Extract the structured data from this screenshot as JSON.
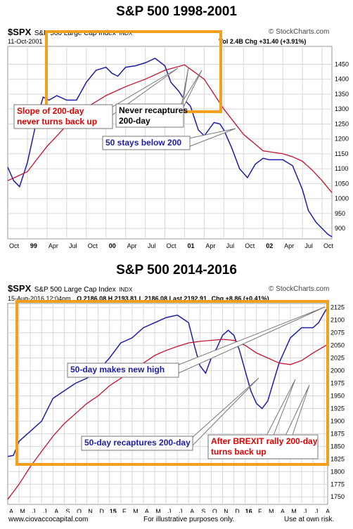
{
  "footer": {
    "left": "www.ciovaccocapital.com",
    "center": "For illustrative purposes only.",
    "right": "Use at own risk."
  },
  "colors": {
    "ma50": "#1c1ca8",
    "ma200": "#c8102e",
    "highlight": "#f5a01a",
    "annotation_red": "#e00000",
    "annotation_blue": "#1c1ca8"
  },
  "chart_data": [
    {
      "type": "line",
      "title": "S&P 500 1998-2001",
      "symbol": "$SPX",
      "description": "S&P 500 Large Cap Index",
      "exchange": "INDX",
      "date": "11-Oct-2001",
      "vol": "Vol 2.4B",
      "chg": "Chg +31.40 (+3.91%)",
      "watermark": "© StockCharts.com",
      "y_ticks": [
        900,
        950,
        1000,
        1050,
        1100,
        1150,
        1200,
        1250,
        1300,
        1350,
        1400,
        1450
      ],
      "ylim": [
        865,
        1510
      ],
      "x_ticks": [
        "Oct",
        "99",
        "Apr",
        "Jul",
        "Oct",
        "00",
        "Apr",
        "Jul",
        "Oct",
        "01",
        "Apr",
        "Jul",
        "Oct",
        "02",
        "Apr",
        "Jul",
        "Oct"
      ],
      "bold_ticks": [
        "99",
        "00",
        "01",
        "02"
      ],
      "series": [
        {
          "name": "50-day",
          "color": "#1c1ca8",
          "x": [
            0,
            0.3,
            0.6,
            1,
            1.5,
            1.8,
            2.1,
            2.5,
            3,
            3.5,
            4,
            4.5,
            5,
            5.3,
            5.6,
            6,
            6.5,
            7,
            7.5,
            8,
            8.3,
            8.7,
            9,
            9.3,
            9.7,
            10,
            10.5,
            10.8,
            11,
            11.4,
            11.8,
            12.2,
            12.6,
            13,
            13.3,
            13.6,
            14,
            14.5,
            15,
            15.3,
            15.7,
            16,
            16.3,
            16.5
          ],
          "y": [
            1105,
            1060,
            1040,
            1120,
            1270,
            1340,
            1330,
            1345,
            1330,
            1330,
            1390,
            1430,
            1440,
            1420,
            1410,
            1440,
            1445,
            1455,
            1470,
            1445,
            1390,
            1360,
            1330,
            1310,
            1230,
            1210,
            1255,
            1250,
            1230,
            1170,
            1100,
            1070,
            1115,
            1135,
            1130,
            1130,
            1130,
            1110,
            1030,
            960,
            920,
            900,
            880,
            872
          ]
        },
        {
          "name": "200-day",
          "color": "#c8102e",
          "x": [
            0,
            1,
            2,
            3,
            4,
            5,
            6,
            7,
            8,
            9,
            10,
            11,
            12,
            13,
            14,
            14.5,
            15,
            15.5,
            16,
            16.5
          ],
          "y": [
            1060,
            1090,
            1175,
            1245,
            1305,
            1345,
            1375,
            1400,
            1430,
            1448,
            1400,
            1300,
            1215,
            1160,
            1150,
            1140,
            1125,
            1095,
            1060,
            1020
          ]
        }
      ],
      "annotations": [
        {
          "text": "Slope of 200-day",
          "text2": "never turns back up",
          "color": "#e00000"
        },
        {
          "text": "Never recaptures",
          "text2": "200-day",
          "color": "#000000"
        },
        {
          "text": "50 stays below 200",
          "text2": "",
          "color": "#1c1ca8"
        }
      ]
    },
    {
      "type": "line",
      "title": "S&P 500 2014-2016",
      "symbol": "$SPX",
      "description": "S&P 500 Large Cap Index",
      "exchange": "INDX",
      "date": "15-Aug-2016 12:04pm",
      "ohlc": "O 2186.08  H 2193.81  L 2186.08  Last 2192.91",
      "chg": "Chg +8.86 (+0.41%)",
      "watermark": "© StockCharts.com",
      "y_ticks": [
        1750,
        1775,
        1800,
        1825,
        1850,
        1875,
        1900,
        1925,
        1950,
        1975,
        2000,
        2025,
        2050,
        2075,
        2100,
        2125
      ],
      "ylim": [
        1735,
        2133
      ],
      "x_ticks": [
        "A",
        "M",
        "J",
        "J",
        "A",
        "S",
        "O",
        "N",
        "D",
        "15",
        "F",
        "M",
        "A",
        "M",
        "J",
        "J",
        "A",
        "S",
        "O",
        "N",
        "D",
        "16",
        "F",
        "M",
        "A",
        "M",
        "J",
        "J",
        "A"
      ],
      "bold_ticks": [
        "15",
        "16"
      ],
      "series": [
        {
          "name": "50-day",
          "color": "#1c1ca8",
          "x": [
            0,
            0.5,
            1,
            2,
            3,
            4,
            5,
            6,
            7,
            8,
            9,
            10,
            11,
            12,
            13,
            14,
            15,
            16,
            16.5,
            17,
            17.5,
            18,
            18.5,
            19,
            19.5,
            20,
            20.5,
            21,
            21.5,
            22,
            22.5,
            23,
            24,
            25,
            26,
            27,
            27.5,
            28,
            28.3
          ],
          "y": [
            1830,
            1832,
            1860,
            1880,
            1900,
            1945,
            1960,
            1975,
            1985,
            2000,
            2025,
            2055,
            2065,
            2085,
            2095,
            2105,
            2110,
            2095,
            2050,
            2010,
            1995,
            2025,
            2045,
            2070,
            2080,
            2070,
            2040,
            2000,
            1960,
            1935,
            1925,
            1940,
            2015,
            2065,
            2085,
            2085,
            2095,
            2115,
            2125
          ]
        },
        {
          "name": "200-day",
          "color": "#c8102e",
          "x": [
            0,
            1,
            2,
            3,
            4,
            5,
            6,
            7,
            8,
            9,
            10,
            11,
            12,
            13,
            14,
            15,
            16,
            17,
            18,
            19,
            20,
            21,
            22,
            23,
            24,
            25,
            26,
            27,
            28,
            28.3
          ],
          "y": [
            1745,
            1775,
            1810,
            1840,
            1870,
            1895,
            1915,
            1935,
            1950,
            1970,
            1985,
            2000,
            2015,
            2030,
            2040,
            2048,
            2055,
            2058,
            2060,
            2062,
            2060,
            2050,
            2035,
            2025,
            2015,
            2012,
            2020,
            2035,
            2048,
            2052
          ]
        }
      ],
      "annotations": [
        {
          "text": "50-day makes new high",
          "text2": "",
          "color": "#1c1ca8"
        },
        {
          "text": "50-day recaptures 200-day",
          "text2": "",
          "color": "#1c1ca8"
        },
        {
          "text": "After BREXIT rally 200-day",
          "text2": "turns back up",
          "color": "#e00000"
        }
      ]
    }
  ]
}
